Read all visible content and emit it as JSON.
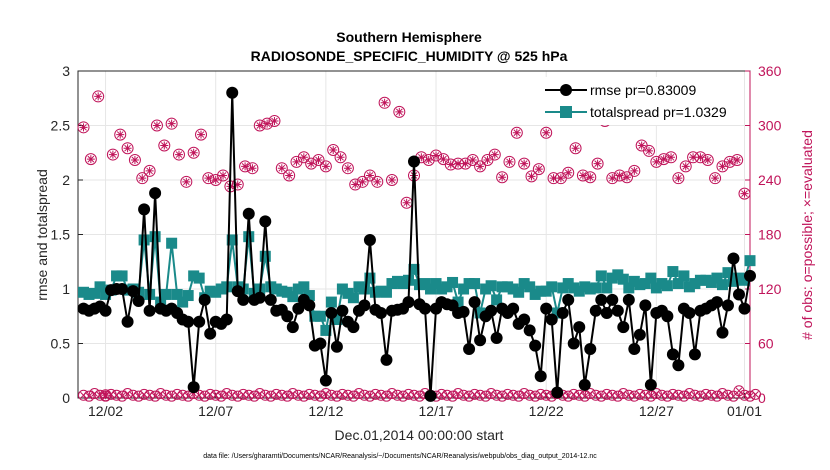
{
  "chart_data": {
    "type": "line",
    "title": "Southern Hemisphere",
    "subtitle": "RADIOSONDE_SPECIFIC_HUMIDITY @ 525 hPa",
    "xlabel": "Dec.01,2014 00:00:00 start",
    "ylabel": "rmse and totalspread",
    "ylabel_right": "# of obs: o=possible; ×=evaluated",
    "footnote": "data file: /Users/gharamti/Documents/NCAR/Reanalysis/~/Documents/NCAR/Reanalysis/webpub/obs_diag_output_2014-12.nc",
    "xlim": [
      0.75,
      31.25
    ],
    "ylim": [
      0,
      3
    ],
    "ylim_right": [
      0,
      360
    ],
    "x_ticks": [
      {
        "value": 2,
        "label": "12/02"
      },
      {
        "value": 7,
        "label": "12/07"
      },
      {
        "value": 12,
        "label": "12/12"
      },
      {
        "value": 17,
        "label": "12/17"
      },
      {
        "value": 22,
        "label": "12/22"
      },
      {
        "value": 27,
        "label": "12/27"
      },
      {
        "value": 31,
        "label": "01/01"
      }
    ],
    "y_ticks": [
      {
        "value": 0,
        "label": "0"
      },
      {
        "value": 0.5,
        "label": "0.5"
      },
      {
        "value": 1,
        "label": "1"
      },
      {
        "value": 1.5,
        "label": "1.5"
      },
      {
        "value": 2,
        "label": "2"
      },
      {
        "value": 2.5,
        "label": "2.5"
      },
      {
        "value": 3,
        "label": "3"
      }
    ],
    "y_ticks_right": [
      {
        "value": 0,
        "label": "0"
      },
      {
        "value": 60,
        "label": "60"
      },
      {
        "value": 120,
        "label": "120"
      },
      {
        "value": 180,
        "label": "180"
      },
      {
        "value": 240,
        "label": "240"
      },
      {
        "value": 300,
        "label": "300"
      },
      {
        "value": 360,
        "label": "360"
      }
    ],
    "x_start": 1.0,
    "x_step": 0.25,
    "series": [
      {
        "name": "rmse",
        "legend": "rmse pr=0.83009",
        "color": "#000000",
        "marker": "circle",
        "axis": "left",
        "values": [
          0.82,
          0.8,
          0.82,
          0.84,
          0.8,
          0.99,
          1.0,
          1.0,
          0.7,
          0.98,
          0.89,
          1.73,
          0.8,
          1.88,
          0.82,
          0.8,
          0.82,
          0.78,
          0.72,
          0.7,
          0.1,
          0.7,
          0.9,
          0.59,
          0.7,
          0.68,
          0.72,
          2.8,
          0.98,
          0.9,
          1.69,
          0.9,
          0.92,
          1.62,
          0.9,
          0.8,
          0.81,
          0.75,
          0.65,
          0.82,
          0.9,
          0.85,
          0.48,
          0.5,
          0.16,
          0.78,
          0.47,
          0.8,
          0.7,
          0.65,
          0.8,
          0.85,
          1.45,
          0.81,
          0.78,
          0.35,
          0.8,
          0.81,
          0.82,
          0.88,
          2.17,
          0.86,
          0.82,
          0.02,
          0.82,
          0.88,
          0.86,
          0.85,
          0.78,
          0.79,
          0.45,
          0.88,
          0.53,
          0.75,
          0.8,
          0.55,
          0.82,
          0.78,
          0.82,
          0.68,
          0.72,
          0.62,
          0.48,
          0.2,
          0.82,
          0.72,
          0.05,
          0.78,
          0.9,
          0.5,
          0.65,
          0.12,
          0.45,
          0.8,
          0.9,
          0.78,
          0.9,
          0.8,
          0.65,
          0.9,
          0.45,
          0.58,
          0.85,
          0.12,
          0.78,
          0.8,
          0.75,
          0.4,
          0.3,
          0.82,
          0.78,
          0.4,
          0.8,
          0.82,
          0.85,
          0.88,
          0.6,
          0.85,
          1.28,
          0.95,
          0.82,
          1.12
        ]
      },
      {
        "name": "totalspread",
        "legend": "totalspread pr=1.0329",
        "color": "#1a8a8a",
        "marker": "square",
        "axis": "left",
        "values": [
          0.97,
          0.95,
          0.96,
          1.02,
          0.95,
          0.99,
          1.12,
          1.12,
          0.99,
          1.0,
          0.97,
          1.45,
          0.95,
          1.48,
          0.88,
          0.95,
          1.42,
          0.95,
          0.88,
          0.94,
          1.12,
          1.1,
          0.92,
          0.98,
          0.97,
          1.0,
          1.02,
          1.45,
          1.02,
          1.0,
          1.48,
          0.96,
          1.0,
          1.3,
          1.02,
          1.0,
          0.98,
          0.97,
          0.93,
          1.0,
          1.02,
          0.94,
          0.75,
          0.75,
          0.62,
          0.88,
          0.72,
          1.0,
          0.96,
          0.92,
          1.02,
          1.0,
          1.1,
          0.97,
          0.98,
          0.97,
          1.05,
          1.07,
          1.05,
          1.08,
          1.18,
          1.04,
          1.05,
          1.0,
          1.05,
          1.0,
          1.02,
          1.06,
          0.88,
          1.0,
          1.05,
          1.05,
          0.78,
          1.0,
          1.03,
          0.9,
          1.02,
          1.02,
          1.0,
          0.97,
          1.05,
          1.02,
          0.95,
          0.98,
          0.98,
          1.02,
          0.78,
          1.01,
          1.05,
          1.01,
          0.98,
          1.02,
          1.0,
          1.01,
          1.12,
          1.01,
          1.1,
          1.13,
          1.09,
          1.01,
          1.07,
          1.04,
          1.05,
          1.1,
          1.01,
          1.05,
          1.03,
          1.16,
          1.05,
          1.12,
          1.02,
          1.05,
          1.08,
          1.08,
          1.06,
          1.1,
          1.04,
          1.15,
          1.07,
          1.1,
          1.08,
          1.26
        ]
      },
      {
        "name": "possible",
        "legend": "o=possible",
        "color": "#c0145a",
        "marker": "open-circle",
        "axis": "right",
        "values": [
          298,
          263,
          332,
          3,
          268,
          290,
          275,
          262,
          242,
          250,
          300,
          278,
          302,
          268,
          238,
          270,
          290,
          242,
          240,
          245,
          233,
          235,
          255,
          253,
          300,
          302,
          305,
          253,
          245,
          260,
          265,
          258,
          262,
          255,
          273,
          265,
          253,
          235,
          238,
          245,
          238,
          325,
          240,
          315,
          215,
          245,
          265,
          262,
          267,
          263,
          257,
          258,
          258,
          262,
          255,
          262,
          268,
          243,
          260,
          292,
          258,
          244,
          252,
          292,
          242,
          242,
          248,
          275,
          245,
          243,
          258,
          305,
          242,
          245,
          243,
          250,
          278,
          272,
          260,
          263,
          265,
          242,
          255,
          265,
          265,
          262,
          242,
          255,
          260,
          262,
          225
        ],
        "values_layout": "possible/evaluated values sampled at daily-ish intervals; zero-line series listed separately",
        "zero_line_values": [
          3,
          2,
          5,
          3,
          2,
          4,
          3,
          2,
          5,
          3,
          2,
          4,
          3,
          2,
          5,
          3,
          2,
          4,
          3,
          2,
          5,
          3,
          2,
          4,
          3,
          2,
          5,
          3,
          2,
          4,
          3,
          2,
          5,
          3,
          2,
          4,
          3,
          2,
          5,
          3,
          2,
          4,
          3,
          2,
          5,
          3,
          2,
          4,
          3,
          2,
          5,
          3,
          2,
          4,
          3,
          2,
          5,
          3,
          2,
          4,
          3,
          2,
          5,
          3,
          2,
          4,
          3,
          2,
          5,
          3,
          2,
          4,
          3,
          2,
          5,
          3,
          2,
          4,
          3,
          2,
          5,
          3,
          2,
          4,
          3,
          2,
          5,
          3,
          2,
          4,
          3,
          2,
          5,
          3,
          2,
          4,
          3,
          2,
          5,
          3,
          2,
          4,
          3,
          2,
          5,
          3,
          2,
          4,
          3,
          2,
          5,
          3,
          2,
          4,
          3,
          2,
          5,
          3,
          2,
          8,
          3,
          2,
          4
        ]
      }
    ],
    "legend_position": "top-right"
  }
}
